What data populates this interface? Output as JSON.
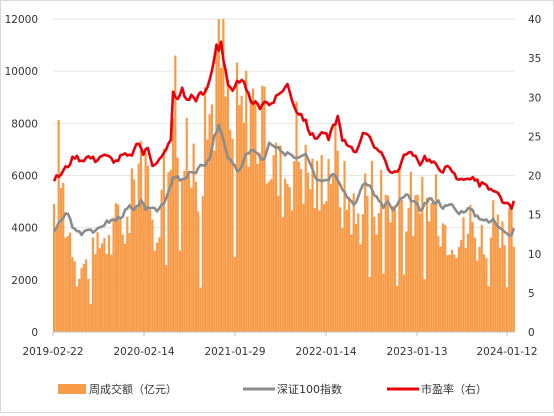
{
  "chart_data": {
    "type": "bar+line",
    "x_ticks": [
      "2019-02-22",
      "2020-02-14",
      "2021-01-29",
      "2022-01-14",
      "2023-01-13",
      "2024-01-12"
    ],
    "y_left": {
      "min": 0,
      "max": 12000,
      "ticks": [
        "0",
        "2000",
        "4000",
        "6000",
        "8000",
        "10000",
        "12000"
      ]
    },
    "y_right": {
      "min": 0,
      "max": 40,
      "ticks": [
        "0",
        "5",
        "10",
        "15",
        "20",
        "25",
        "30",
        "35",
        "40"
      ]
    },
    "legend": {
      "bars": "周成交额（亿元）",
      "index": "深证100指数",
      "pe": "市盈率（右）"
    },
    "colors": {
      "bars": "#f79b48",
      "index": "#8c8c8c",
      "pe": "#e8000b"
    },
    "bar_anchors": [
      [
        0,
        4200
      ],
      [
        2,
        6900
      ],
      [
        4,
        5600
      ],
      [
        6,
        4100
      ],
      [
        8,
        3900
      ],
      [
        10,
        2500
      ],
      [
        12,
        2700
      ],
      [
        14,
        2600
      ],
      [
        16,
        3000
      ],
      [
        18,
        2900
      ],
      [
        20,
        3600
      ],
      [
        22,
        4000
      ],
      [
        24,
        3500
      ],
      [
        26,
        3900
      ],
      [
        28,
        4600
      ],
      [
        30,
        4500
      ],
      [
        32,
        4300
      ],
      [
        34,
        5200
      ],
      [
        36,
        6800
      ],
      [
        38,
        7500
      ],
      [
        40,
        6000
      ],
      [
        42,
        4500
      ],
      [
        44,
        4000
      ],
      [
        46,
        5200
      ],
      [
        48,
        6300
      ],
      [
        50,
        7600
      ],
      [
        52,
        10500
      ],
      [
        54,
        9000
      ],
      [
        56,
        6700
      ],
      [
        58,
        6800
      ],
      [
        60,
        6600
      ],
      [
        62,
        7200
      ],
      [
        64,
        6100
      ],
      [
        66,
        7700
      ],
      [
        68,
        8800
      ],
      [
        70,
        9700
      ],
      [
        72,
        11800
      ],
      [
        74,
        10600
      ],
      [
        76,
        8900
      ],
      [
        78,
        7400
      ],
      [
        80,
        8700
      ],
      [
        82,
        8500
      ],
      [
        84,
        8800
      ],
      [
        86,
        9800
      ],
      [
        88,
        8600
      ],
      [
        90,
        8300
      ],
      [
        92,
        7700
      ],
      [
        94,
        7400
      ],
      [
        96,
        6900
      ],
      [
        98,
        6200
      ],
      [
        100,
        6300
      ],
      [
        102,
        6500
      ],
      [
        104,
        6800
      ],
      [
        106,
        7700
      ],
      [
        108,
        7200
      ],
      [
        110,
        6400
      ],
      [
        112,
        6500
      ],
      [
        114,
        6100
      ],
      [
        116,
        5400
      ],
      [
        118,
        7000
      ],
      [
        120,
        6800
      ],
      [
        122,
        7300
      ],
      [
        124,
        6400
      ],
      [
        126,
        5500
      ],
      [
        128,
        5600
      ],
      [
        130,
        5200
      ],
      [
        132,
        4400
      ],
      [
        134,
        4800
      ],
      [
        136,
        5700
      ],
      [
        138,
        5900
      ],
      [
        140,
        5600
      ],
      [
        142,
        5400
      ],
      [
        144,
        5900
      ],
      [
        146,
        5700
      ],
      [
        148,
        5000
      ],
      [
        150,
        4800
      ],
      [
        152,
        5600
      ],
      [
        154,
        5500
      ],
      [
        156,
        5200
      ],
      [
        158,
        4700
      ],
      [
        160,
        4700
      ],
      [
        162,
        5100
      ],
      [
        164,
        5200
      ],
      [
        166,
        4900
      ],
      [
        168,
        5100
      ],
      [
        170,
        4500
      ],
      [
        172,
        4200
      ],
      [
        174,
        4300
      ],
      [
        176,
        4000
      ],
      [
        178,
        3900
      ],
      [
        180,
        3800
      ],
      [
        182,
        4500
      ],
      [
        184,
        4000
      ],
      [
        186,
        3700
      ],
      [
        188,
        3900
      ],
      [
        190,
        4100
      ],
      [
        192,
        4200
      ],
      [
        194,
        3700
      ],
      [
        196,
        3500
      ],
      [
        198,
        4000
      ]
    ],
    "pe_anchors": [
      [
        0,
        19.5
      ],
      [
        3,
        20.2
      ],
      [
        6,
        21.3
      ],
      [
        9,
        22.5
      ],
      [
        12,
        22
      ],
      [
        15,
        22.4
      ],
      [
        18,
        22
      ],
      [
        21,
        22.6
      ],
      [
        24,
        22.3
      ],
      [
        27,
        21.8
      ],
      [
        30,
        22.6
      ],
      [
        33,
        22.4
      ],
      [
        35,
        23.2
      ],
      [
        37,
        24.2
      ],
      [
        39,
        22.8
      ],
      [
        41,
        23.5
      ],
      [
        43,
        21.5
      ],
      [
        45,
        21.8
      ],
      [
        47,
        22.3
      ],
      [
        49,
        23.2
      ],
      [
        51,
        24.8
      ],
      [
        52,
        30.5
      ],
      [
        54,
        29.6
      ],
      [
        56,
        31.2
      ],
      [
        58,
        29.5
      ],
      [
        60,
        30.2
      ],
      [
        62,
        29.8
      ],
      [
        64,
        30.4
      ],
      [
        66,
        30.5
      ],
      [
        68,
        32.2
      ],
      [
        70,
        35
      ],
      [
        71,
        37
      ],
      [
        72,
        36
      ],
      [
        73,
        37.2
      ],
      [
        74,
        34.8
      ],
      [
        76,
        31.5
      ],
      [
        78,
        30.5
      ],
      [
        80,
        31.8
      ],
      [
        82,
        32.5
      ],
      [
        84,
        30.8
      ],
      [
        86,
        29.5
      ],
      [
        88,
        29.2
      ],
      [
        90,
        28.8
      ],
      [
        92,
        29.6
      ],
      [
        94,
        29
      ],
      [
        96,
        29.5
      ],
      [
        98,
        30.2
      ],
      [
        100,
        31
      ],
      [
        102,
        31.6
      ],
      [
        104,
        29.8
      ],
      [
        106,
        28.2
      ],
      [
        108,
        27.8
      ],
      [
        110,
        26.8
      ],
      [
        112,
        25.4
      ],
      [
        114,
        24.8
      ],
      [
        116,
        25.2
      ],
      [
        118,
        25.6
      ],
      [
        120,
        24.6
      ],
      [
        122,
        26.2
      ],
      [
        124,
        27.5
      ],
      [
        126,
        24.8
      ],
      [
        128,
        23.8
      ],
      [
        130,
        23.4
      ],
      [
        132,
        23
      ],
      [
        134,
        24.8
      ],
      [
        136,
        25.6
      ],
      [
        138,
        25.2
      ],
      [
        140,
        23.6
      ],
      [
        142,
        22.8
      ],
      [
        144,
        22.5
      ],
      [
        146,
        21
      ],
      [
        148,
        20.4
      ],
      [
        150,
        20.5
      ],
      [
        152,
        21.8
      ],
      [
        154,
        23
      ],
      [
        156,
        22.8
      ],
      [
        158,
        22.2
      ],
      [
        160,
        21.6
      ],
      [
        162,
        22.4
      ],
      [
        164,
        21.9
      ],
      [
        166,
        21.5
      ],
      [
        168,
        21
      ],
      [
        170,
        20.7
      ],
      [
        172,
        21
      ],
      [
        174,
        20.6
      ],
      [
        176,
        19.6
      ],
      [
        178,
        19.8
      ],
      [
        180,
        19.3
      ],
      [
        182,
        19.8
      ],
      [
        184,
        19.5
      ],
      [
        186,
        18.8
      ],
      [
        188,
        19
      ],
      [
        190,
        18.2
      ],
      [
        192,
        17.8
      ],
      [
        194,
        17.6
      ],
      [
        196,
        16.8
      ],
      [
        198,
        16.2
      ],
      [
        200,
        15.8
      ],
      [
        201,
        16.5
      ]
    ],
    "index_anchors": [
      [
        0,
        3800
      ],
      [
        3,
        4300
      ],
      [
        6,
        4600
      ],
      [
        8,
        4000
      ],
      [
        10,
        3900
      ],
      [
        12,
        3800
      ],
      [
        15,
        4000
      ],
      [
        18,
        3800
      ],
      [
        21,
        4100
      ],
      [
        24,
        4250
      ],
      [
        27,
        4300
      ],
      [
        30,
        4500
      ],
      [
        33,
        4800
      ],
      [
        35,
        4600
      ],
      [
        37,
        4900
      ],
      [
        38,
        5100
      ],
      [
        40,
        4600
      ],
      [
        42,
        4800
      ],
      [
        45,
        4700
      ],
      [
        48,
        5000
      ],
      [
        50,
        5300
      ],
      [
        52,
        5900
      ],
      [
        54,
        5900
      ],
      [
        56,
        5800
      ],
      [
        58,
        5900
      ],
      [
        60,
        6200
      ],
      [
        62,
        6100
      ],
      [
        64,
        6400
      ],
      [
        66,
        6300
      ],
      [
        68,
        6700
      ],
      [
        70,
        7500
      ],
      [
        72,
        7900
      ],
      [
        73,
        7700
      ],
      [
        74,
        7400
      ],
      [
        76,
        6700
      ],
      [
        78,
        6400
      ],
      [
        80,
        6200
      ],
      [
        82,
        6300
      ],
      [
        84,
        6800
      ],
      [
        86,
        7000
      ],
      [
        88,
        6900
      ],
      [
        90,
        6700
      ],
      [
        92,
        6600
      ],
      [
        94,
        7200
      ],
      [
        96,
        7100
      ],
      [
        98,
        7000
      ],
      [
        100,
        6800
      ],
      [
        102,
        6900
      ],
      [
        104,
        6800
      ],
      [
        106,
        6700
      ],
      [
        108,
        6800
      ],
      [
        110,
        6900
      ],
      [
        112,
        6500
      ],
      [
        114,
        6000
      ],
      [
        116,
        5800
      ],
      [
        118,
        5900
      ],
      [
        120,
        5900
      ],
      [
        122,
        6100
      ],
      [
        124,
        5900
      ],
      [
        126,
        5400
      ],
      [
        128,
        5200
      ],
      [
        130,
        5000
      ],
      [
        132,
        4900
      ],
      [
        134,
        5500
      ],
      [
        136,
        5800
      ],
      [
        138,
        5600
      ],
      [
        140,
        5300
      ],
      [
        142,
        5000
      ],
      [
        144,
        4800
      ],
      [
        146,
        5000
      ],
      [
        148,
        4600
      ],
      [
        150,
        4900
      ],
      [
        152,
        5100
      ],
      [
        154,
        5200
      ],
      [
        156,
        5100
      ],
      [
        158,
        4900
      ],
      [
        160,
        4700
      ],
      [
        162,
        4900
      ],
      [
        164,
        5100
      ],
      [
        166,
        5000
      ],
      [
        168,
        5000
      ],
      [
        170,
        4800
      ],
      [
        172,
        4800
      ],
      [
        174,
        4900
      ],
      [
        176,
        4600
      ],
      [
        178,
        4600
      ],
      [
        180,
        4700
      ],
      [
        182,
        4700
      ],
      [
        184,
        4500
      ],
      [
        186,
        4400
      ],
      [
        188,
        4300
      ],
      [
        190,
        4200
      ],
      [
        192,
        4300
      ],
      [
        194,
        4100
      ],
      [
        196,
        4000
      ],
      [
        198,
        3800
      ],
      [
        200,
        3700
      ],
      [
        201,
        3900
      ]
    ]
  }
}
